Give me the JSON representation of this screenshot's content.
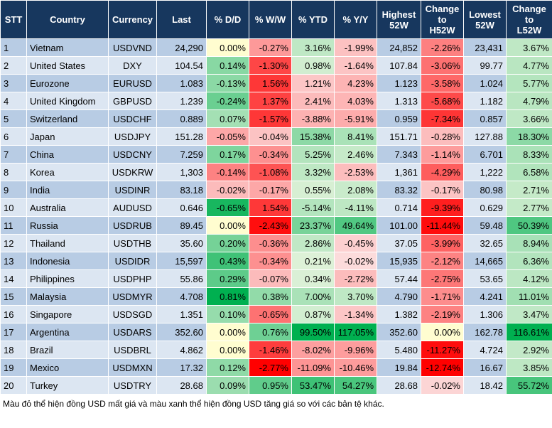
{
  "table": {
    "header": [
      "STT",
      "Country",
      "Currency",
      "Last",
      "% D/D",
      "% W/W",
      "% YTD",
      "% Y/Y",
      "Highest\n52W",
      "Change\nto\nH52W",
      "Lowest\n52W",
      "Change\nto\nL52W"
    ],
    "rows": [
      [
        "1",
        "Vietnam",
        "USDVND",
        "24,290",
        "0.00%",
        "-0.27%",
        "3.16%",
        "-1.99%",
        "24,852",
        "-2.26%",
        "23,431",
        "3.67%"
      ],
      [
        "2",
        "United States",
        "DXY",
        "104.54",
        "0.14%",
        "-1.30%",
        "0.98%",
        "-1.64%",
        "107.84",
        "-3.06%",
        "99.77",
        "4.77%"
      ],
      [
        "3",
        "Eurozone",
        "EURUSD",
        "1.083",
        "-0.13%",
        "1.56%",
        "1.21%",
        "4.23%",
        "1.123",
        "-3.58%",
        "1.024",
        "5.77%"
      ],
      [
        "4",
        "United Kingdom",
        "GBPUSD",
        "1.239",
        "-0.24%",
        "1.37%",
        "2.41%",
        "4.03%",
        "1.313",
        "-5.68%",
        "1.182",
        "4.79%"
      ],
      [
        "5",
        "Switzerland",
        "USDCHF",
        "0.889",
        "0.07%",
        "-1.57%",
        "-3.88%",
        "-5.91%",
        "0.959",
        "-7.34%",
        "0.857",
        "3.66%"
      ],
      [
        "6",
        "Japan",
        "USDJPY",
        "151.28",
        "-0.05%",
        "-0.04%",
        "15.38%",
        "8.41%",
        "151.71",
        "-0.28%",
        "127.88",
        "18.30%"
      ],
      [
        "7",
        "China",
        "USDCNY",
        "7.259",
        "0.17%",
        "-0.34%",
        "5.25%",
        "2.46%",
        "7.343",
        "-1.14%",
        "6.701",
        "8.33%"
      ],
      [
        "8",
        "Korea",
        "USDKRW",
        "1,303",
        "-0.14%",
        "-1.08%",
        "3.32%",
        "-2.53%",
        "1,361",
        "-4.29%",
        "1,222",
        "6.58%"
      ],
      [
        "9",
        "India",
        "USDINR",
        "83.18",
        "-0.02%",
        "-0.17%",
        "0.55%",
        "2.08%",
        "83.32",
        "-0.17%",
        "80.98",
        "2.71%"
      ],
      [
        "10",
        "Australia",
        "AUDUSD",
        "0.646",
        "-0.65%",
        "1.54%",
        "-5.14%",
        "-4.11%",
        "0.714",
        "-9.39%",
        "0.629",
        "2.77%"
      ],
      [
        "11",
        "Russia",
        "USDRUB",
        "89.45",
        "0.00%",
        "-2.43%",
        "23.37%",
        "49.64%",
        "101.00",
        "-11.44%",
        "59.48",
        "50.39%"
      ],
      [
        "12",
        "Thailand",
        "USDTHB",
        "35.60",
        "0.20%",
        "-0.36%",
        "2.86%",
        "-0.45%",
        "37.05",
        "-3.99%",
        "32.65",
        "8.94%"
      ],
      [
        "13",
        "Indonesia",
        "USDIDR",
        "15,597",
        "0.43%",
        "-0.34%",
        "0.21%",
        "-0.02%",
        "15,935",
        "-2.12%",
        "14,665",
        "6.36%"
      ],
      [
        "14",
        "Philippines",
        "USDPHP",
        "55.86",
        "0.29%",
        "-0.07%",
        "0.34%",
        "-2.72%",
        "57.44",
        "-2.75%",
        "53.65",
        "4.12%"
      ],
      [
        "15",
        "Malaysia",
        "USDMYR",
        "4.708",
        "0.81%",
        "0.38%",
        "7.00%",
        "3.70%",
        "4.790",
        "-1.71%",
        "4.241",
        "11.01%"
      ],
      [
        "16",
        "Singapore",
        "USDSGD",
        "1.351",
        "0.10%",
        "-0.65%",
        "0.87%",
        "-1.34%",
        "1.382",
        "-2.19%",
        "1.306",
        "3.47%"
      ],
      [
        "17",
        "Argentina",
        "USDARS",
        "352.60",
        "0.00%",
        "0.76%",
        "99.50%",
        "117.05%",
        "352.60",
        "0.00%",
        "162.78",
        "116.61%"
      ],
      [
        "18",
        "Brazil",
        "USDBRL",
        "4.862",
        "0.00%",
        "-1.46%",
        "-8.02%",
        "-9.96%",
        "5.480",
        "-11.27%",
        "4.724",
        "2.92%"
      ],
      [
        "19",
        "Mexico",
        "USDMXN",
        "17.32",
        "0.12%",
        "-2.77%",
        "-11.09%",
        "-10.46%",
        "19.84",
        "-12.74%",
        "16.67",
        "3.85%"
      ],
      [
        "20",
        "Turkey",
        "USDTRY",
        "28.68",
        "0.09%",
        "0.95%",
        "53.47%",
        "54.27%",
        "28.68",
        "-0.02%",
        "18.42",
        "55.72%"
      ]
    ]
  },
  "footer": "Màu đỏ thể hiện đồng USD mất giá và màu xanh thể hiện đồng USD tăng giá so với các bản tệ khác."
}
